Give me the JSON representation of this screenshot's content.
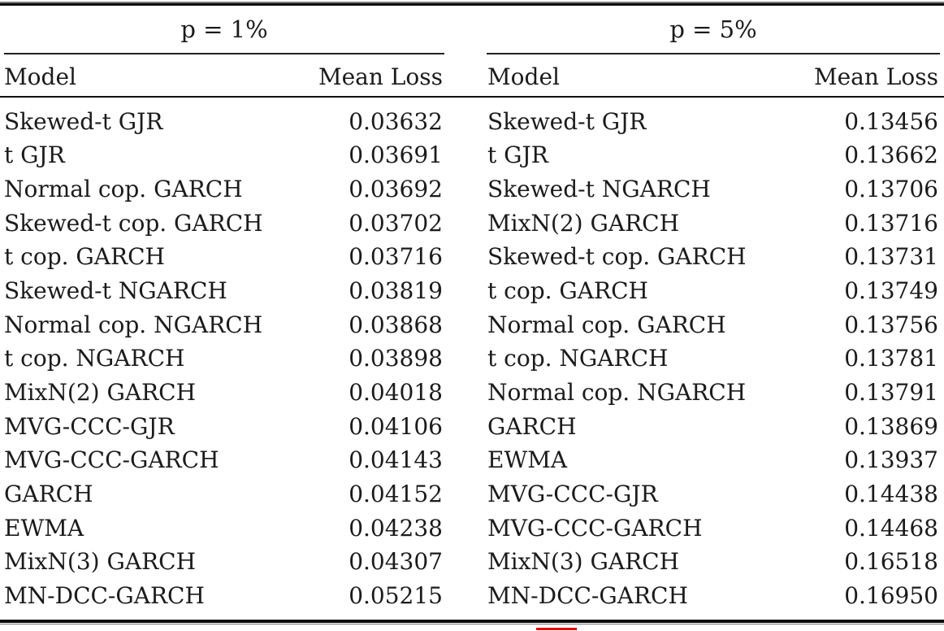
{
  "table": {
    "panels": [
      {
        "group_header": "p = 1%",
        "columns": {
          "model": "Model",
          "mean_loss": "Mean Loss"
        },
        "rows": [
          {
            "model": "Skewed-t GJR",
            "mean_loss": "0.03632"
          },
          {
            "model": "t GJR",
            "mean_loss": "0.03691"
          },
          {
            "model": "Normal cop. GARCH",
            "mean_loss": "0.03692"
          },
          {
            "model": "Skewed-t cop. GARCH",
            "mean_loss": "0.03702"
          },
          {
            "model": "t cop. GARCH",
            "mean_loss": "0.03716"
          },
          {
            "model": "Skewed-t NGARCH",
            "mean_loss": "0.03819"
          },
          {
            "model": "Normal cop. NGARCH",
            "mean_loss": "0.03868"
          },
          {
            "model": "t cop. NGARCH",
            "mean_loss": "0.03898"
          },
          {
            "model": "MixN(2) GARCH",
            "mean_loss": "0.04018"
          },
          {
            "model": "MVG-CCC-GJR",
            "mean_loss": "0.04106"
          },
          {
            "model": "MVG-CCC-GARCH",
            "mean_loss": "0.04143"
          },
          {
            "model": "GARCH",
            "mean_loss": "0.04152"
          },
          {
            "model": "EWMA",
            "mean_loss": "0.04238"
          },
          {
            "model": "MixN(3) GARCH",
            "mean_loss": "0.04307"
          },
          {
            "model": "MN-DCC-GARCH",
            "mean_loss": "0.05215"
          }
        ]
      },
      {
        "group_header": "p = 5%",
        "columns": {
          "model": "Model",
          "mean_loss": "Mean Loss"
        },
        "rows": [
          {
            "model": "Skewed-t GJR",
            "mean_loss": "0.13456"
          },
          {
            "model": "t GJR",
            "mean_loss": "0.13662"
          },
          {
            "model": "Skewed-t NGARCH",
            "mean_loss": "0.13706"
          },
          {
            "model": "MixN(2) GARCH",
            "mean_loss": "0.13716"
          },
          {
            "model": "Skewed-t cop. GARCH",
            "mean_loss": "0.13731"
          },
          {
            "model": "t cop. GARCH",
            "mean_loss": "0.13749"
          },
          {
            "model": "Normal cop. GARCH",
            "mean_loss": "0.13756"
          },
          {
            "model": "t cop. NGARCH",
            "mean_loss": "0.13781"
          },
          {
            "model": "Normal cop. NGARCH",
            "mean_loss": "0.13791"
          },
          {
            "model": "GARCH",
            "mean_loss": "0.13869"
          },
          {
            "model": "EWMA",
            "mean_loss": "0.13937"
          },
          {
            "model": "MVG-CCC-GJR",
            "mean_loss": "0.14438"
          },
          {
            "model": "MVG-CCC-GARCH",
            "mean_loss": "0.14468"
          },
          {
            "model": "MixN(3) GARCH",
            "mean_loss": "0.16518"
          },
          {
            "model": "MN-DCC-GARCH",
            "mean_loss": "0.16950"
          }
        ]
      }
    ]
  },
  "colors": {
    "text": "#1b1b1b",
    "rule_heavy": "#0e0e0e",
    "rule_light": "#7a7a7a",
    "link_mark_red": "#e60000"
  }
}
